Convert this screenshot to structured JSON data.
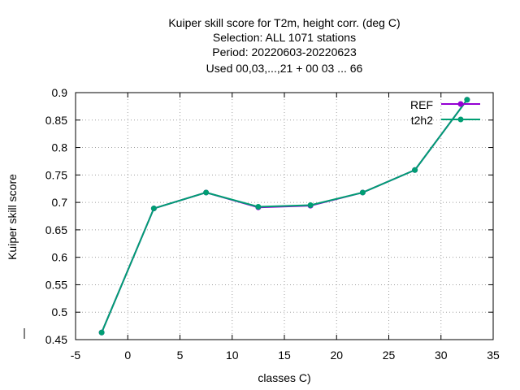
{
  "chart_data": {
    "type": "line",
    "title_lines": [
      "Kuiper skill score  for T2m, height corr. (deg C)",
      "Selection: ALL    1071 stations",
      "Period: 20220603-20220623",
      "Used  00,03,...,21  + 00 03 ... 66"
    ],
    "xlabel": "classes C)",
    "ylabel": "Kuiper skill score",
    "xlim": [
      -5,
      35
    ],
    "ylim": [
      0.45,
      0.9
    ],
    "x_ticks": [
      -5,
      0,
      5,
      10,
      15,
      20,
      25,
      30,
      35
    ],
    "y_ticks": [
      0.45,
      0.5,
      0.55,
      0.6,
      0.65,
      0.7,
      0.75,
      0.8,
      0.85,
      0.9
    ],
    "x_tick_labels": [
      "-5",
      "0",
      "5",
      "10",
      "15",
      "20",
      "25",
      "30",
      "35"
    ],
    "y_tick_labels": [
      "0.45",
      "0.5",
      "0.55",
      "0.6",
      "0.65",
      "0.7",
      "0.75",
      "0.8",
      "0.85",
      "0.9"
    ],
    "grid": true,
    "legend_position": "top-right",
    "x": [
      -2.5,
      2.5,
      7.5,
      12.5,
      17.5,
      22.5,
      27.5,
      32.5
    ],
    "series": [
      {
        "name": "REF",
        "color": "#9400d3",
        "values": [
          0.463,
          0.689,
          0.718,
          0.691,
          0.694,
          0.718,
          0.759,
          0.887
        ]
      },
      {
        "name": "t2h2",
        "color": "#009e73",
        "values": [
          0.463,
          0.689,
          0.718,
          0.692,
          0.695,
          0.718,
          0.759,
          0.887
        ]
      }
    ]
  }
}
